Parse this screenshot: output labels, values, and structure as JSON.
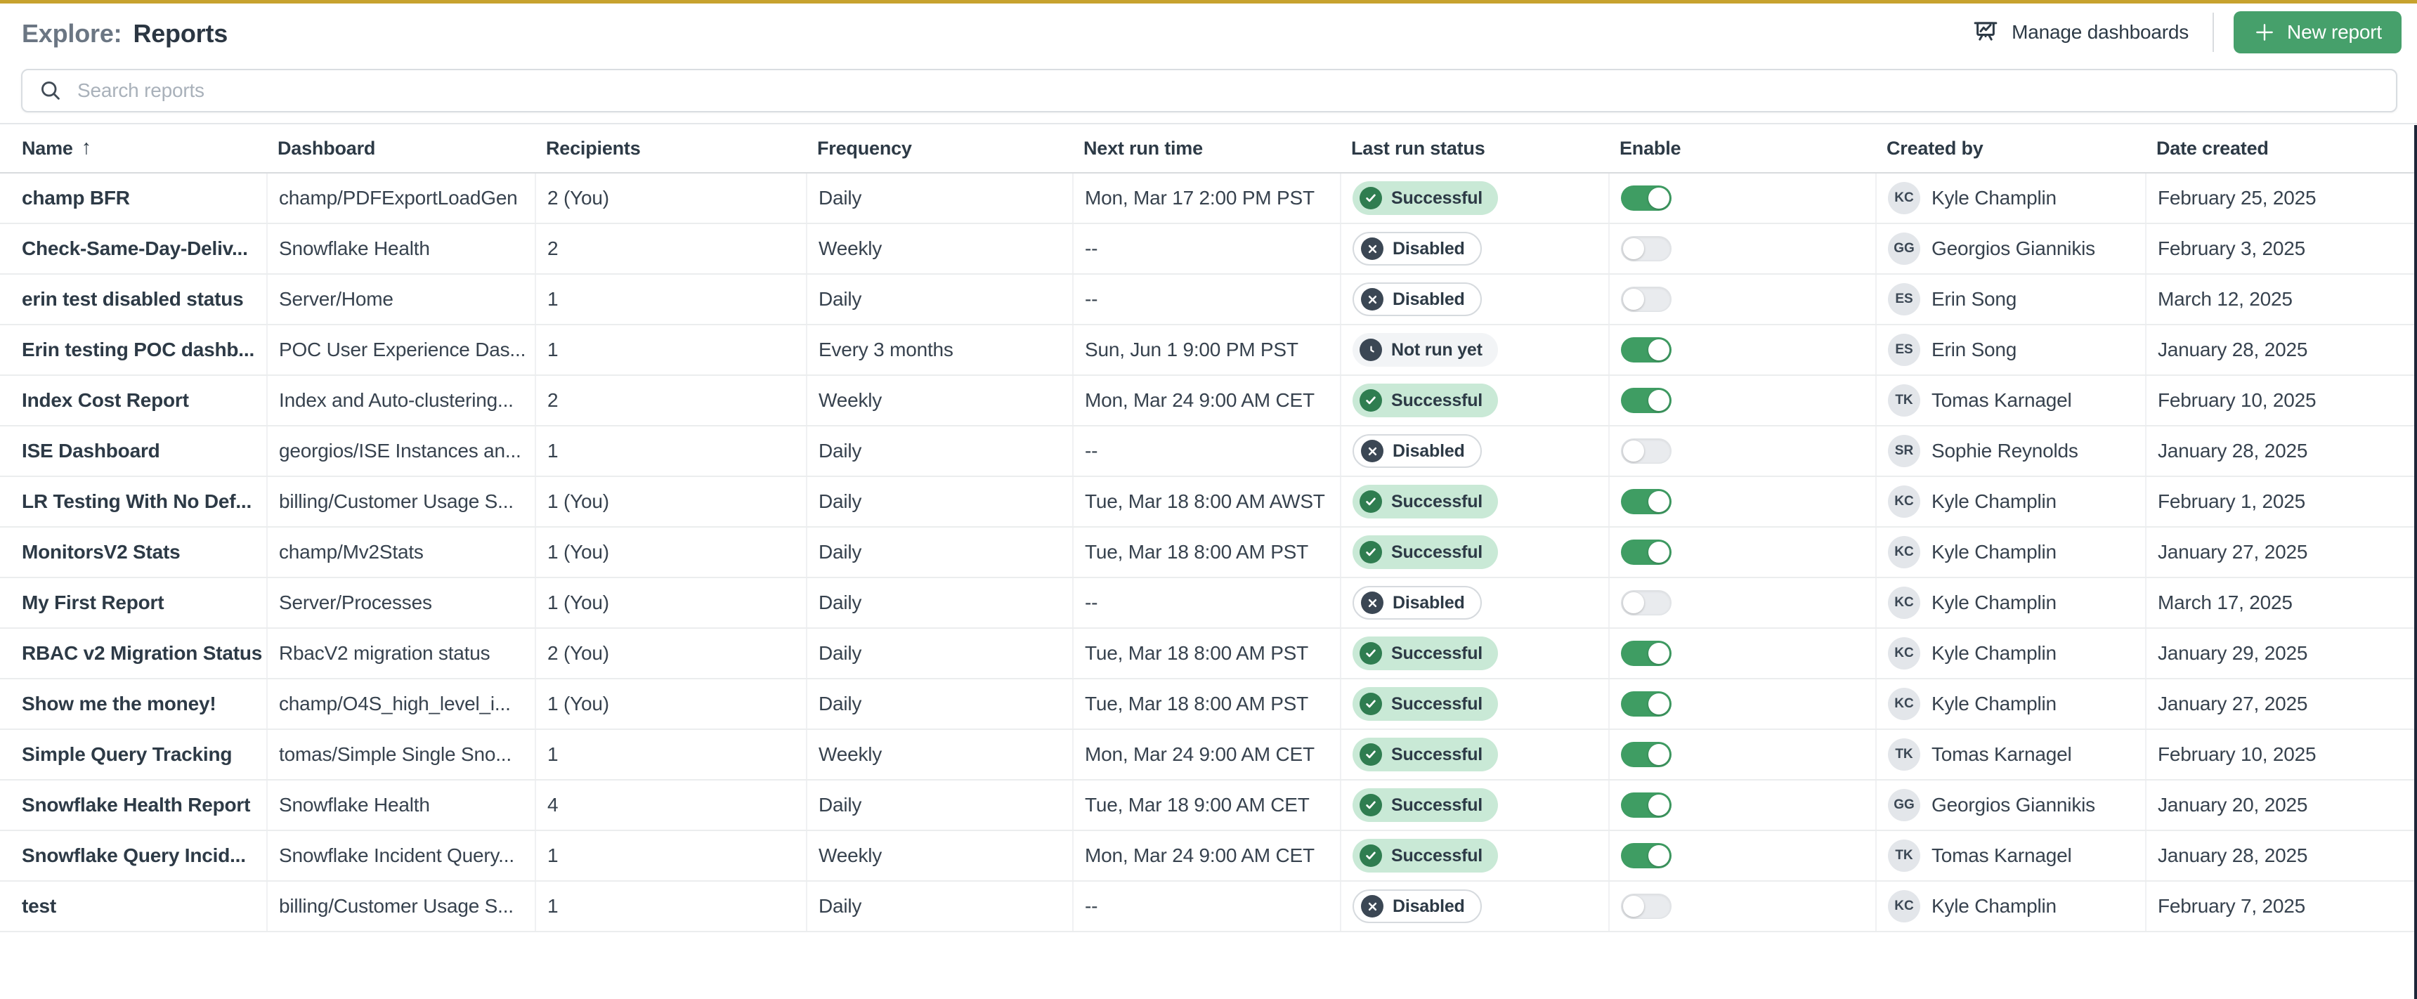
{
  "page": {
    "title_prefix": "Explore:",
    "title": "Reports"
  },
  "toolbar": {
    "manage_dashboards_label": "Manage dashboards",
    "new_report_label": "New report"
  },
  "search": {
    "placeholder": "Search reports"
  },
  "colors": {
    "accent_gold": "#c7a22e",
    "button_green": "#46a06b",
    "toggle_on_green": "#3f9d63",
    "badge_success_bg": "#c9e9d6",
    "badge_success_dot": "#2f7d50",
    "badge_slate_dot": "#3b4754",
    "right_edge_strip": "#1d2638"
  },
  "table": {
    "columns": [
      {
        "label": "Name",
        "sorted": "asc"
      },
      {
        "label": "Dashboard"
      },
      {
        "label": "Recipients"
      },
      {
        "label": "Frequency"
      },
      {
        "label": "Next run time"
      },
      {
        "label": "Last run status"
      },
      {
        "label": "Enable"
      },
      {
        "label": "Created by"
      },
      {
        "label": "Date created"
      }
    ],
    "rows": [
      {
        "name": "champ BFR",
        "dashboard": "champ/PDFExportLoadGen",
        "recipients": "2 (You)",
        "frequency": "Daily",
        "next_run": "Mon, Mar 17 2:00 PM PST",
        "status": "Successful",
        "status_type": "successful",
        "enabled": true,
        "initials": "KC",
        "created_by": "Kyle Champlin",
        "date_created": "February 25, 2025"
      },
      {
        "name": "Check-Same-Day-Deliv...",
        "dashboard": "Snowflake Health",
        "recipients": "2",
        "frequency": "Weekly",
        "next_run": "--",
        "status": "Disabled",
        "status_type": "disabled",
        "enabled": false,
        "initials": "GG",
        "created_by": "Georgios Giannikis",
        "date_created": "February 3, 2025"
      },
      {
        "name": "erin test disabled status",
        "dashboard": "Server/Home",
        "recipients": "1",
        "frequency": "Daily",
        "next_run": "--",
        "status": "Disabled",
        "status_type": "disabled",
        "enabled": false,
        "initials": "ES",
        "created_by": "Erin Song",
        "date_created": "March 12, 2025"
      },
      {
        "name": "Erin testing POC dashb...",
        "dashboard": "POC User Experience Das...",
        "recipients": "1",
        "frequency": "Every 3 months",
        "next_run": "Sun, Jun 1 9:00 PM PST",
        "status": "Not run yet",
        "status_type": "not-run",
        "enabled": true,
        "initials": "ES",
        "created_by": "Erin Song",
        "date_created": "January 28, 2025"
      },
      {
        "name": "Index Cost Report",
        "dashboard": "Index and Auto-clustering...",
        "recipients": "2",
        "frequency": "Weekly",
        "next_run": "Mon, Mar 24 9:00 AM CET",
        "status": "Successful",
        "status_type": "successful",
        "enabled": true,
        "initials": "TK",
        "created_by": "Tomas Karnagel",
        "date_created": "February 10, 2025"
      },
      {
        "name": "ISE Dashboard",
        "dashboard": "georgios/ISE Instances an...",
        "recipients": "1",
        "frequency": "Daily",
        "next_run": "--",
        "status": "Disabled",
        "status_type": "disabled",
        "enabled": false,
        "initials": "SR",
        "created_by": "Sophie Reynolds",
        "date_created": "January 28, 2025"
      },
      {
        "name": "LR Testing With No Def...",
        "dashboard": "billing/Customer Usage S...",
        "recipients": "1 (You)",
        "frequency": "Daily",
        "next_run": "Tue, Mar 18 8:00 AM AWST",
        "status": "Successful",
        "status_type": "successful",
        "enabled": true,
        "initials": "KC",
        "created_by": "Kyle Champlin",
        "date_created": "February 1, 2025"
      },
      {
        "name": "MonitorsV2 Stats",
        "dashboard": "champ/Mv2Stats",
        "recipients": "1 (You)",
        "frequency": "Daily",
        "next_run": "Tue, Mar 18 8:00 AM PST",
        "status": "Successful",
        "status_type": "successful",
        "enabled": true,
        "initials": "KC",
        "created_by": "Kyle Champlin",
        "date_created": "January 27, 2025"
      },
      {
        "name": "My First Report",
        "dashboard": "Server/Processes",
        "recipients": "1 (You)",
        "frequency": "Daily",
        "next_run": "--",
        "status": "Disabled",
        "status_type": "disabled",
        "enabled": false,
        "initials": "KC",
        "created_by": "Kyle Champlin",
        "date_created": "March 17, 2025"
      },
      {
        "name": "RBAC v2 Migration Status",
        "dashboard": "RbacV2 migration status",
        "recipients": "2 (You)",
        "frequency": "Daily",
        "next_run": "Tue, Mar 18 8:00 AM PST",
        "status": "Successful",
        "status_type": "successful",
        "enabled": true,
        "initials": "KC",
        "created_by": "Kyle Champlin",
        "date_created": "January 29, 2025"
      },
      {
        "name": "Show me the money!",
        "dashboard": "champ/O4S_high_level_i...",
        "recipients": "1 (You)",
        "frequency": "Daily",
        "next_run": "Tue, Mar 18 8:00 AM PST",
        "status": "Successful",
        "status_type": "successful",
        "enabled": true,
        "initials": "KC",
        "created_by": "Kyle Champlin",
        "date_created": "January 27, 2025"
      },
      {
        "name": "Simple Query Tracking",
        "dashboard": "tomas/Simple Single Sno...",
        "recipients": "1",
        "frequency": "Weekly",
        "next_run": "Mon, Mar 24 9:00 AM CET",
        "status": "Successful",
        "status_type": "successful",
        "enabled": true,
        "initials": "TK",
        "created_by": "Tomas Karnagel",
        "date_created": "February 10, 2025"
      },
      {
        "name": "Snowflake Health Report",
        "dashboard": "Snowflake Health",
        "recipients": "4",
        "frequency": "Daily",
        "next_run": "Tue, Mar 18 9:00 AM CET",
        "status": "Successful",
        "status_type": "successful",
        "enabled": true,
        "initials": "GG",
        "created_by": "Georgios Giannikis",
        "date_created": "January 20, 2025"
      },
      {
        "name": "Snowflake Query Incid...",
        "dashboard": "Snowflake Incident Query...",
        "recipients": "1",
        "frequency": "Weekly",
        "next_run": "Mon, Mar 24 9:00 AM CET",
        "status": "Successful",
        "status_type": "successful",
        "enabled": true,
        "initials": "TK",
        "created_by": "Tomas Karnagel",
        "date_created": "January 28, 2025"
      },
      {
        "name": "test",
        "dashboard": "billing/Customer Usage S...",
        "recipients": "1",
        "frequency": "Daily",
        "next_run": "--",
        "status": "Disabled",
        "status_type": "disabled",
        "enabled": false,
        "initials": "KC",
        "created_by": "Kyle Champlin",
        "date_created": "February 7, 2025"
      }
    ]
  }
}
